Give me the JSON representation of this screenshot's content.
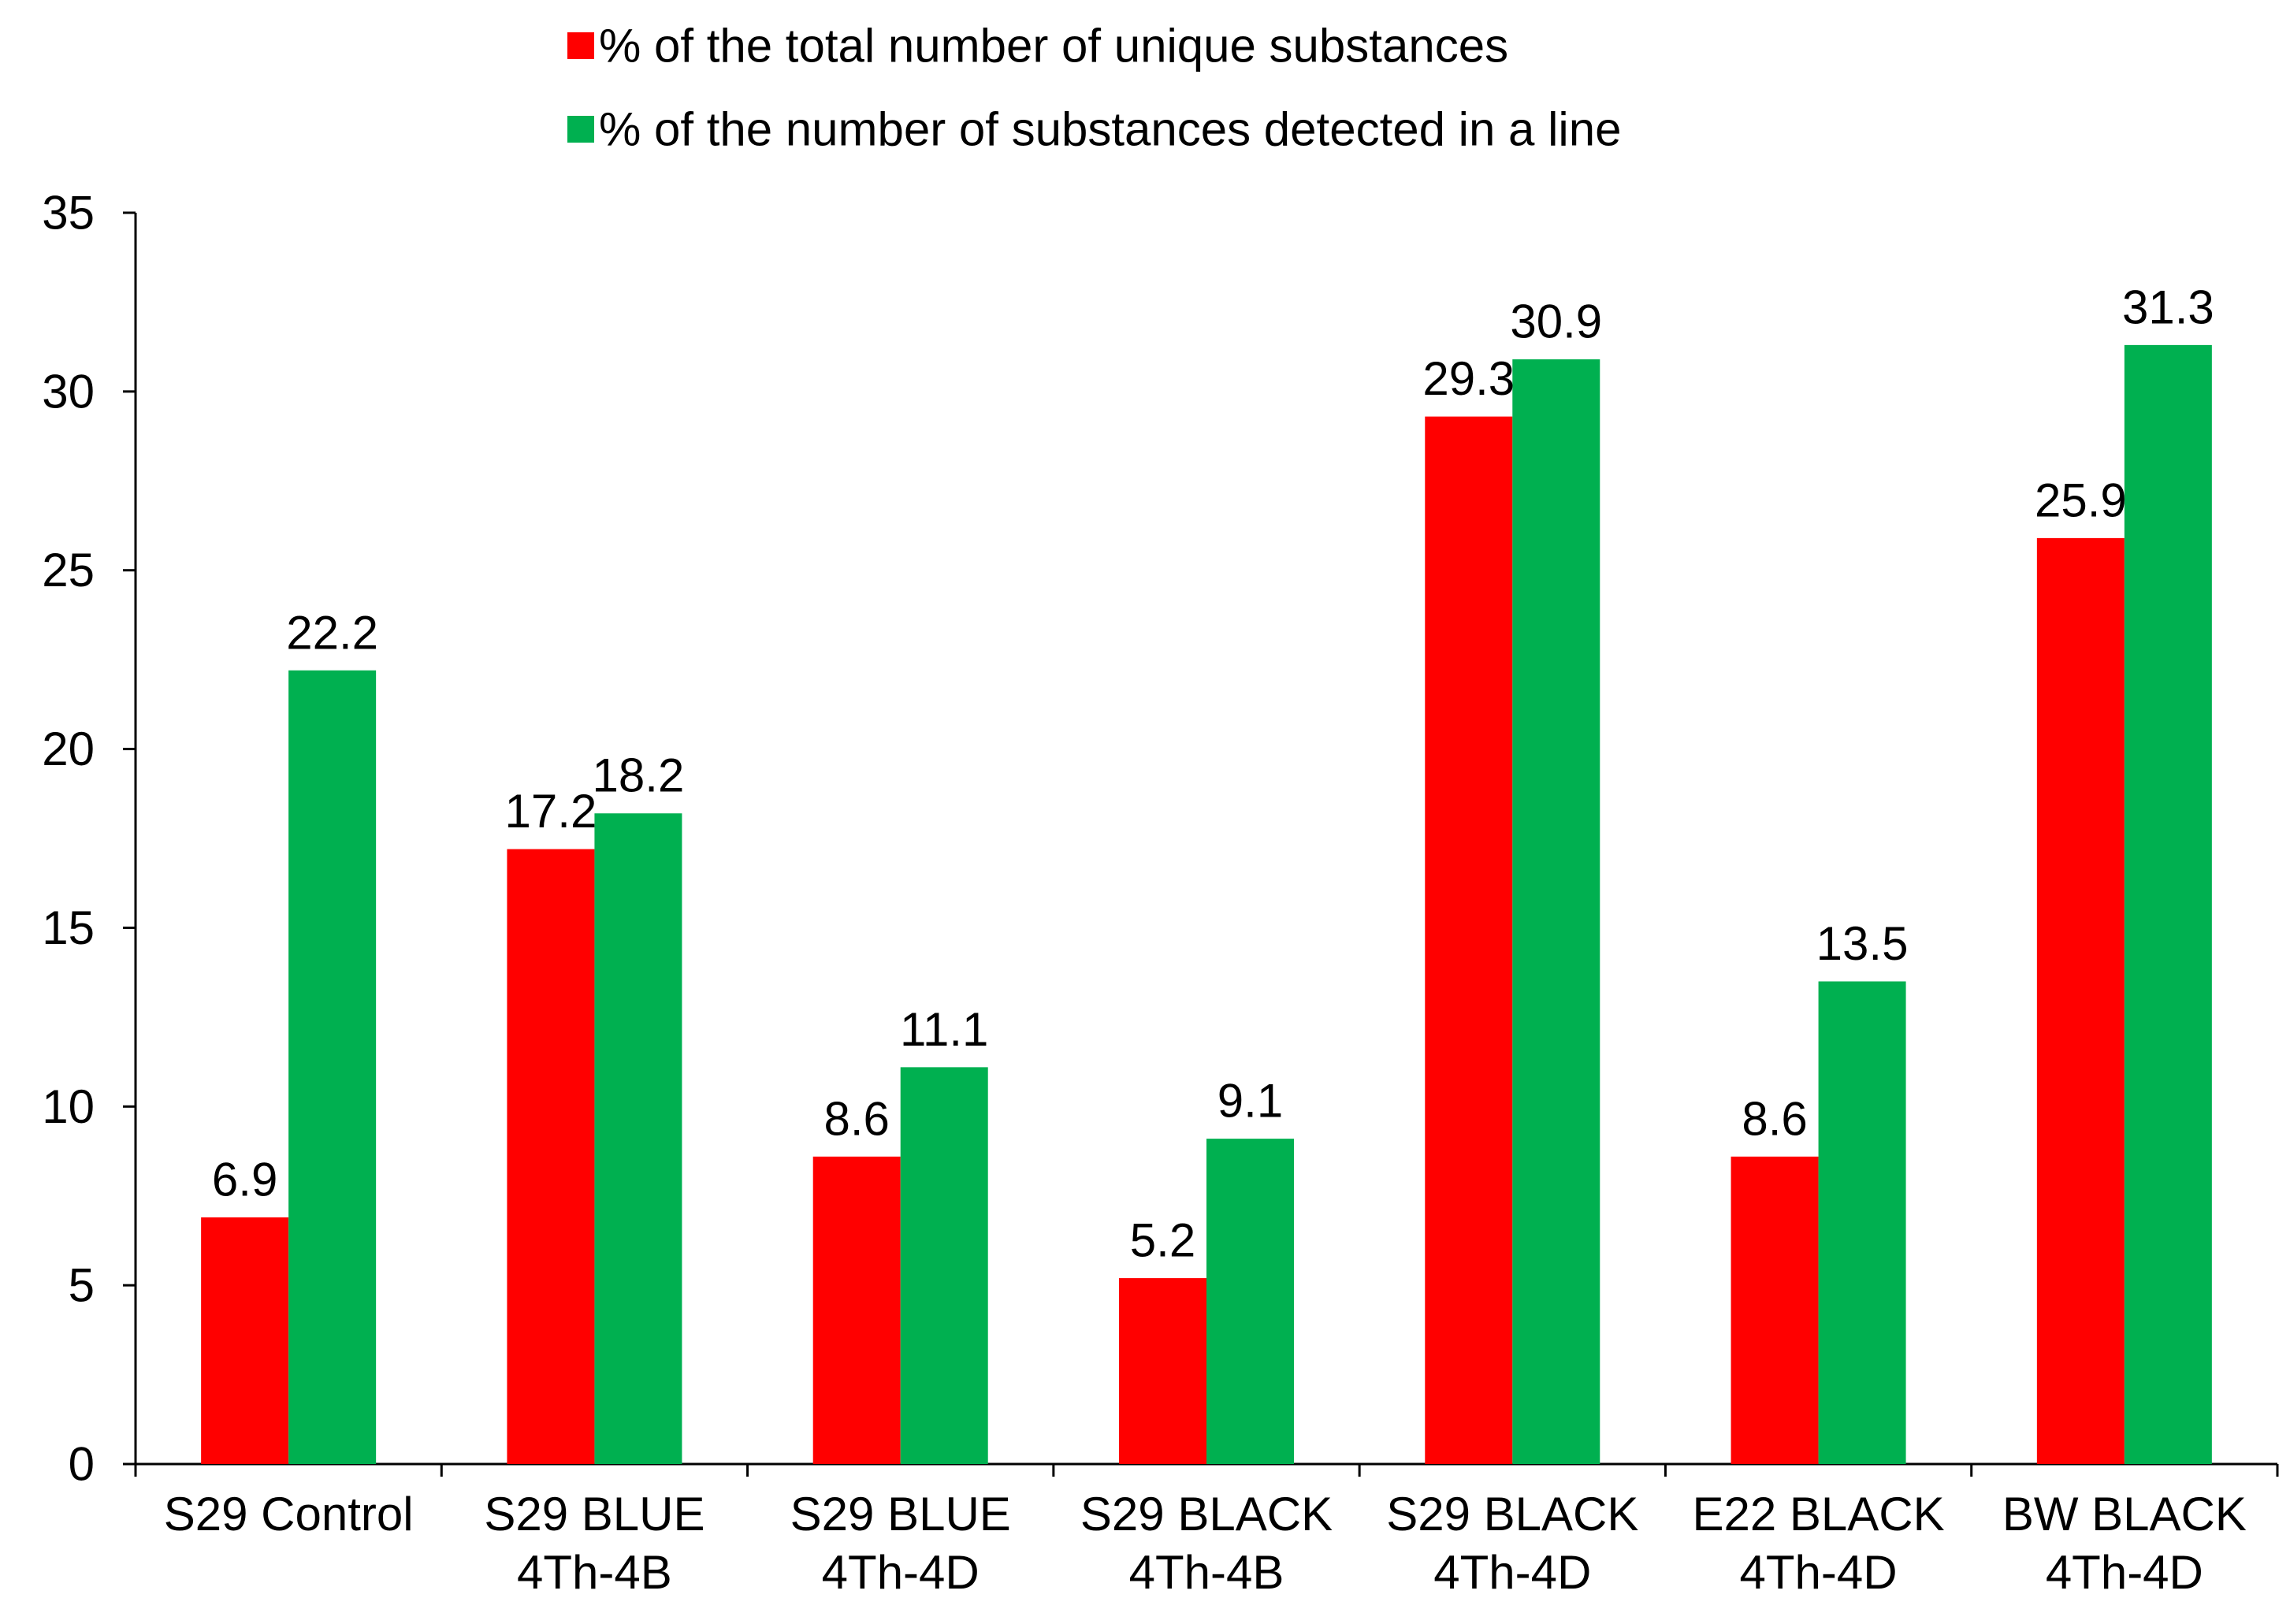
{
  "chart_data": {
    "type": "bar",
    "title": "",
    "xlabel": "",
    "ylabel": "",
    "ylim": [
      0,
      35
    ],
    "yticks": [
      0,
      5,
      10,
      15,
      20,
      25,
      30,
      35
    ],
    "grid": false,
    "legend_position": "top-center",
    "categories": [
      [
        "S29 Control"
      ],
      [
        "S29 BLUE",
        "4Th-4B"
      ],
      [
        "S29 BLUE",
        "4Th-4D"
      ],
      [
        "S29 BLACK",
        "4Th-4B"
      ],
      [
        "S29 BLACK",
        "4Th-4D"
      ],
      [
        "E22 BLACK",
        "4Th-4D"
      ],
      [
        "BW BLACK",
        "4Th-4D"
      ]
    ],
    "series": [
      {
        "name": "% of the total number of unique substances",
        "color": "#ff0000",
        "values": [
          6.9,
          17.2,
          8.6,
          5.2,
          29.3,
          8.6,
          25.9
        ],
        "labels": [
          "6.9",
          "17.2",
          "8.6",
          "5.2",
          "29.3",
          "8.6",
          "25.9"
        ]
      },
      {
        "name": "% of the number of substances detected in a line",
        "color": "#00b050",
        "values": [
          22.2,
          18.2,
          11.1,
          9.1,
          30.9,
          13.5,
          31.3
        ],
        "labels": [
          "22.2",
          "18.2",
          "11.1",
          "9.1",
          "30.9",
          "13.5",
          "31.3"
        ]
      }
    ]
  }
}
